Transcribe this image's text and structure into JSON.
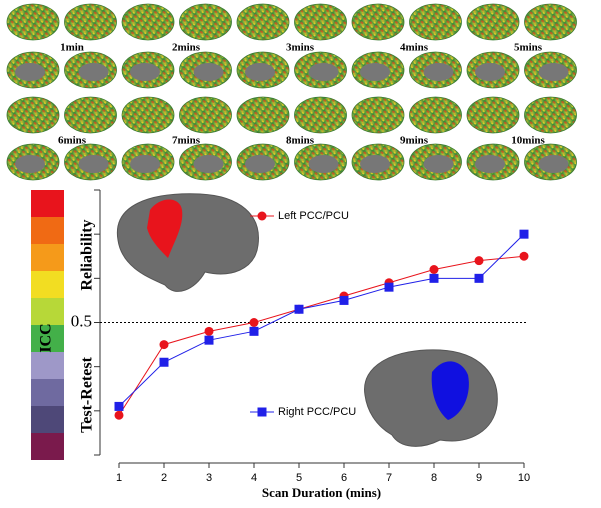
{
  "time_labels": [
    "1min",
    "2mins",
    "3mins",
    "4mins",
    "5mins",
    "6mins",
    "7mins",
    "8mins",
    "9mins",
    "10mins"
  ],
  "chart_data": {
    "type": "line",
    "xlabel": "Scan Duration (mins)",
    "ylabel_upper": "Reliability",
    "ylabel_lower": "Test-Retest",
    "colorbar_label": "ICC",
    "x": [
      1,
      2,
      3,
      4,
      5,
      6,
      7,
      8,
      9,
      10
    ],
    "xlim": [
      1,
      10
    ],
    "xticks": [
      1,
      2,
      3,
      4,
      5,
      6,
      7,
      8,
      9,
      10
    ],
    "ylim": [
      0.2,
      0.8
    ],
    "yticks": [
      0.5
    ],
    "yminor_ticks": [
      0.2,
      0.3,
      0.4,
      0.6,
      0.7,
      0.8
    ],
    "reference_line": 0.5,
    "series": [
      {
        "name": "Left PCC/PCU",
        "color": "#e8141c",
        "marker": "circle",
        "values": [
          0.29,
          0.45,
          0.48,
          0.5,
          0.53,
          0.56,
          0.59,
          0.62,
          0.64,
          0.65
        ]
      },
      {
        "name": "Right PCC/PCU",
        "color": "#2020e8",
        "marker": "square",
        "values": [
          0.31,
          0.41,
          0.46,
          0.48,
          0.53,
          0.55,
          0.58,
          0.6,
          0.6,
          0.7
        ]
      }
    ]
  }
}
